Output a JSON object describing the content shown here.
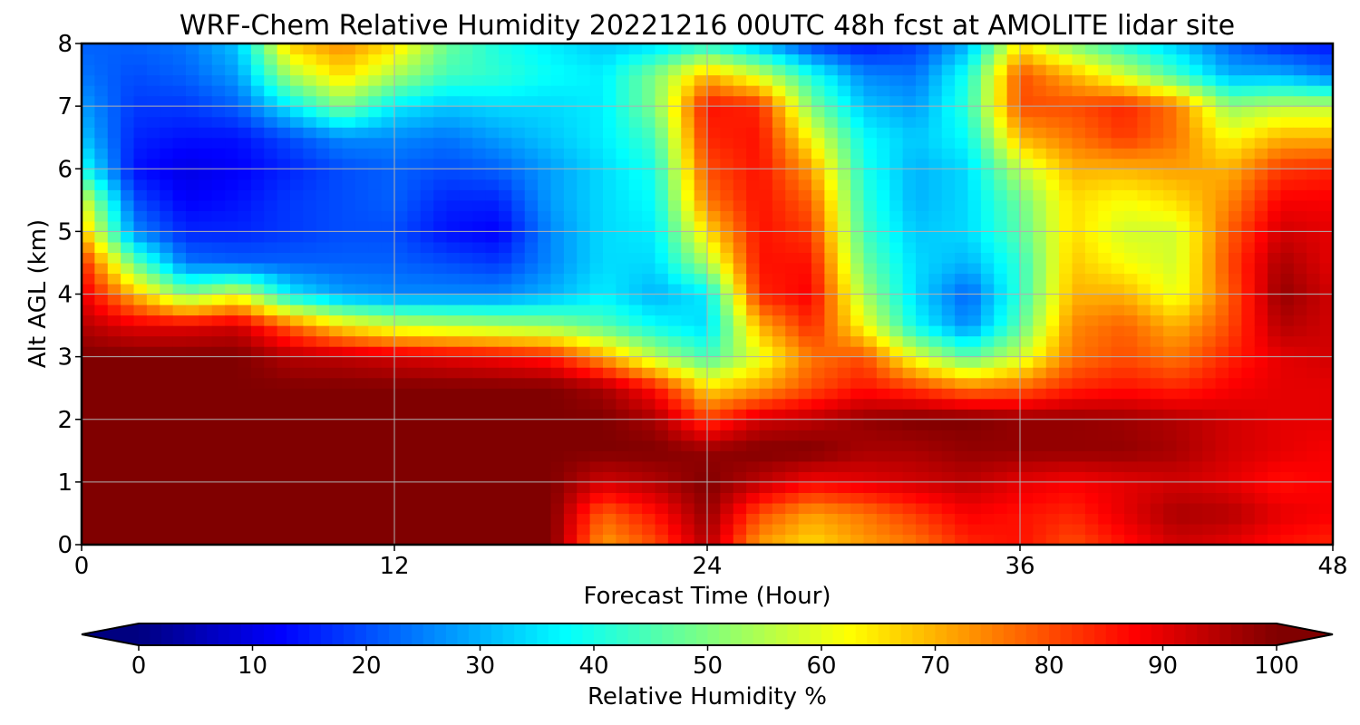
{
  "chart_data": {
    "type": "heatmap",
    "title": "WRF-Chem Relative Humidity 20221216 00UTC 48h fcst at AMOLITE lidar site",
    "xlabel": "Forecast Time (Hour)",
    "ylabel": "Alt AGL (km)",
    "xlim": [
      0,
      48
    ],
    "ylim": [
      0,
      8
    ],
    "x_ticks": [
      0,
      12,
      24,
      36,
      48
    ],
    "y_ticks": [
      0,
      1,
      2,
      3,
      4,
      5,
      6,
      7,
      8
    ],
    "grid": true,
    "x": [
      0,
      2,
      4,
      6,
      8,
      10,
      12,
      14,
      16,
      18,
      20,
      22,
      24,
      26,
      28,
      30,
      32,
      34,
      36,
      38,
      40,
      42,
      44,
      46,
      48
    ],
    "y": [
      0,
      0.5,
      1,
      1.5,
      2,
      2.5,
      3,
      3.5,
      4,
      4.5,
      5,
      5.5,
      6,
      6.5,
      7,
      7.5,
      8
    ],
    "z": [
      [
        100,
        100,
        100,
        100,
        100,
        100,
        100,
        100,
        100,
        100,
        72,
        80,
        95,
        72,
        66,
        72,
        76,
        84,
        86,
        80,
        86,
        92,
        90,
        86,
        84
      ],
      [
        100,
        100,
        100,
        100,
        100,
        100,
        100,
        100,
        100,
        100,
        78,
        86,
        98,
        80,
        72,
        76,
        82,
        88,
        86,
        84,
        90,
        96,
        95,
        90,
        88
      ],
      [
        100,
        100,
        100,
        100,
        100,
        100,
        100,
        100,
        100,
        100,
        92,
        95,
        100,
        94,
        88,
        90,
        92,
        94,
        90,
        88,
        90,
        92,
        90,
        86,
        88
      ],
      [
        100,
        100,
        100,
        100,
        100,
        100,
        100,
        100,
        100,
        100,
        100,
        100,
        98,
        100,
        100,
        96,
        96,
        98,
        98,
        98,
        98,
        96,
        92,
        90,
        88
      ],
      [
        100,
        100,
        100,
        100,
        100,
        100,
        100,
        100,
        100,
        100,
        100,
        96,
        82,
        92,
        94,
        98,
        100,
        100,
        98,
        98,
        97,
        95,
        92,
        90,
        90
      ],
      [
        100,
        100,
        100,
        100,
        100,
        100,
        100,
        100,
        100,
        100,
        96,
        86,
        66,
        72,
        80,
        86,
        82,
        76,
        78,
        84,
        86,
        84,
        88,
        90,
        90
      ],
      [
        100,
        100,
        100,
        100,
        95,
        94,
        92,
        90,
        88,
        85,
        72,
        56,
        44,
        60,
        76,
        80,
        60,
        46,
        58,
        76,
        80,
        76,
        84,
        90,
        92
      ],
      [
        95,
        90,
        90,
        92,
        78,
        65,
        58,
        56,
        54,
        52,
        46,
        38,
        34,
        70,
        84,
        62,
        38,
        26,
        46,
        74,
        78,
        70,
        80,
        95,
        92
      ],
      [
        90,
        70,
        50,
        60,
        36,
        28,
        26,
        26,
        26,
        30,
        36,
        30,
        36,
        84,
        88,
        54,
        34,
        22,
        42,
        70,
        70,
        60,
        78,
        98,
        92
      ],
      [
        85,
        48,
        24,
        22,
        22,
        22,
        22,
        20,
        18,
        26,
        34,
        34,
        54,
        86,
        86,
        48,
        34,
        30,
        42,
        68,
        62,
        58,
        80,
        96,
        90
      ],
      [
        70,
        26,
        16,
        16,
        18,
        20,
        20,
        14,
        12,
        26,
        34,
        36,
        66,
        86,
        82,
        44,
        32,
        34,
        46,
        66,
        58,
        58,
        78,
        92,
        90
      ],
      [
        60,
        20,
        12,
        14,
        18,
        20,
        22,
        16,
        16,
        28,
        34,
        38,
        76,
        86,
        78,
        42,
        30,
        34,
        48,
        66,
        62,
        66,
        74,
        88,
        88
      ],
      [
        40,
        14,
        10,
        12,
        16,
        20,
        22,
        20,
        22,
        28,
        34,
        40,
        80,
        86,
        72,
        40,
        30,
        34,
        56,
        70,
        70,
        72,
        70,
        82,
        84
      ],
      [
        32,
        16,
        14,
        14,
        20,
        26,
        26,
        24,
        28,
        32,
        36,
        44,
        84,
        86,
        62,
        38,
        32,
        38,
        70,
        76,
        82,
        76,
        62,
        70,
        70
      ],
      [
        28,
        18,
        18,
        22,
        36,
        50,
        36,
        32,
        34,
        34,
        36,
        50,
        86,
        84,
        50,
        32,
        28,
        42,
        80,
        80,
        84,
        76,
        52,
        56,
        56
      ],
      [
        24,
        20,
        22,
        28,
        54,
        66,
        54,
        44,
        42,
        38,
        36,
        50,
        70,
        58,
        40,
        26,
        24,
        40,
        80,
        70,
        58,
        44,
        30,
        30,
        24
      ],
      [
        22,
        22,
        24,
        32,
        68,
        74,
        66,
        48,
        40,
        36,
        32,
        34,
        40,
        30,
        18,
        14,
        18,
        30,
        64,
        50,
        40,
        32,
        22,
        16,
        14
      ]
    ],
    "colorbar": {
      "label": "Relative Humidity %",
      "ticks": [
        0,
        10,
        20,
        30,
        40,
        50,
        60,
        70,
        80,
        90,
        100
      ],
      "range": [
        0,
        100
      ],
      "extend": "both",
      "colormap": "jet"
    }
  }
}
